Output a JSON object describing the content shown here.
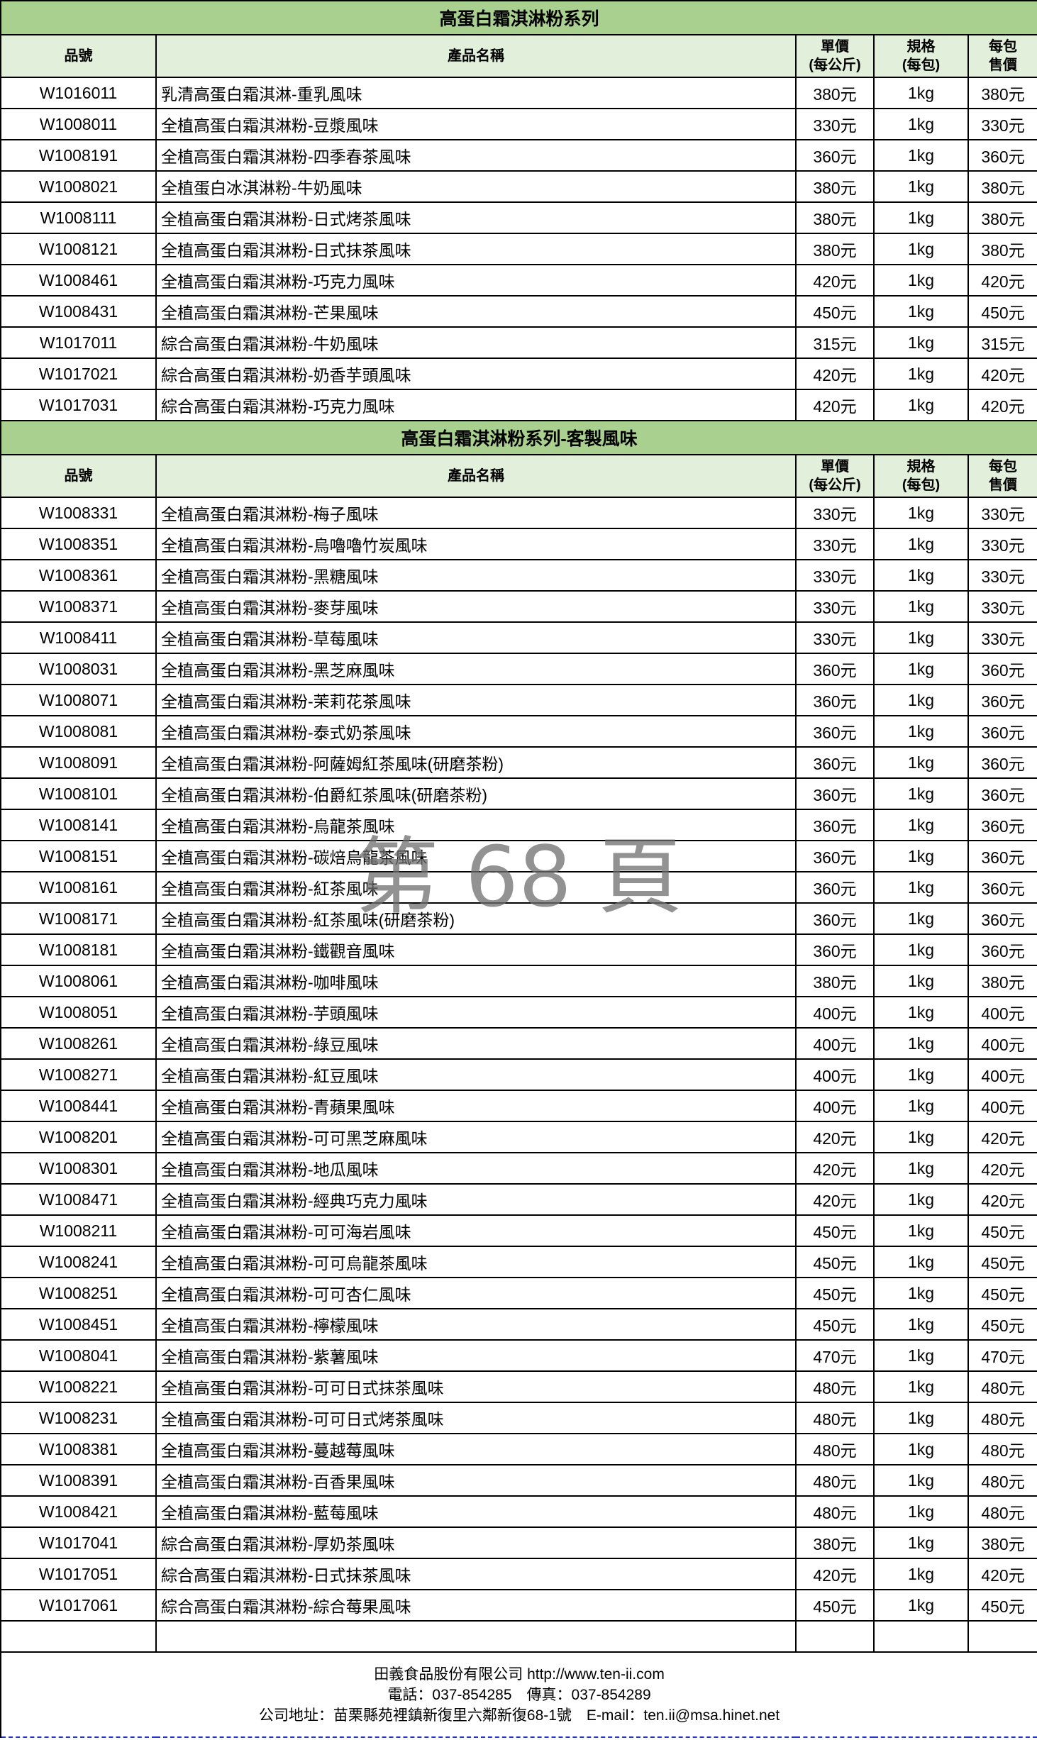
{
  "sections": [
    {
      "title": "高蛋白霜淇淋粉系列",
      "headers": {
        "code": "品號",
        "name": "產品名稱",
        "unit_price_1": "單價",
        "unit_price_2": "(每公斤)",
        "spec_1": "規格",
        "spec_2": "(每包)",
        "pack_price_1": "每包",
        "pack_price_2": "售價"
      },
      "rows": [
        [
          "W1016011",
          "乳清高蛋白霜淇淋-重乳風味",
          "380元",
          "1kg",
          "380元"
        ],
        [
          "W1008011",
          "全植高蛋白霜淇淋粉-豆漿風味",
          "330元",
          "1kg",
          "330元"
        ],
        [
          "W1008191",
          "全植高蛋白霜淇淋粉-四季春茶風味",
          "360元",
          "1kg",
          "360元"
        ],
        [
          "W1008021",
          "全植蛋白冰淇淋粉-牛奶風味",
          "380元",
          "1kg",
          "380元"
        ],
        [
          "W1008111",
          "全植高蛋白霜淇淋粉-日式烤茶風味",
          "380元",
          "1kg",
          "380元"
        ],
        [
          "W1008121",
          "全植高蛋白霜淇淋粉-日式抹茶風味",
          "380元",
          "1kg",
          "380元"
        ],
        [
          "W1008461",
          "全植高蛋白霜淇淋粉-巧克力風味",
          "420元",
          "1kg",
          "420元"
        ],
        [
          "W1008431",
          "全植高蛋白霜淇淋粉-芒果風味",
          "450元",
          "1kg",
          "450元"
        ],
        [
          "W1017011",
          "綜合高蛋白霜淇淋粉-牛奶風味",
          "315元",
          "1kg",
          "315元"
        ],
        [
          "W1017021",
          "綜合高蛋白霜淇淋粉-奶香芋頭風味",
          "420元",
          "1kg",
          "420元"
        ],
        [
          "W1017031",
          "綜合高蛋白霜淇淋粉-巧克力風味",
          "420元",
          "1kg",
          "420元"
        ]
      ]
    },
    {
      "title": "高蛋白霜淇淋粉系列-客製風味",
      "headers": {
        "code": "品號",
        "name": "產品名稱",
        "unit_price_1": "單價",
        "unit_price_2": "(每公斤)",
        "spec_1": "規格",
        "spec_2": "(每包)",
        "pack_price_1": "每包",
        "pack_price_2": "售價"
      },
      "rows": [
        [
          "W1008331",
          "全植高蛋白霜淇淋粉-梅子風味",
          "330元",
          "1kg",
          "330元"
        ],
        [
          "W1008351",
          "全植高蛋白霜淇淋粉-烏嚕嚕竹炭風味",
          "330元",
          "1kg",
          "330元"
        ],
        [
          "W1008361",
          "全植高蛋白霜淇淋粉-黑糖風味",
          "330元",
          "1kg",
          "330元"
        ],
        [
          "W1008371",
          "全植高蛋白霜淇淋粉-麥芽風味",
          "330元",
          "1kg",
          "330元"
        ],
        [
          "W1008411",
          "全植高蛋白霜淇淋粉-草莓風味",
          "330元",
          "1kg",
          "330元"
        ],
        [
          "W1008031",
          "全植高蛋白霜淇淋粉-黑芝麻風味",
          "360元",
          "1kg",
          "360元"
        ],
        [
          "W1008071",
          "全植高蛋白霜淇淋粉-茉莉花茶風味",
          "360元",
          "1kg",
          "360元"
        ],
        [
          "W1008081",
          "全植高蛋白霜淇淋粉-泰式奶茶風味",
          "360元",
          "1kg",
          "360元"
        ],
        [
          "W1008091",
          "全植高蛋白霜淇淋粉-阿薩姆紅茶風味(研磨茶粉)",
          "360元",
          "1kg",
          "360元"
        ],
        [
          "W1008101",
          "全植高蛋白霜淇淋粉-伯爵紅茶風味(研磨茶粉)",
          "360元",
          "1kg",
          "360元"
        ],
        [
          "W1008141",
          "全植高蛋白霜淇淋粉-烏龍茶風味",
          "360元",
          "1kg",
          "360元"
        ],
        [
          "W1008151",
          "全植高蛋白霜淇淋粉-碳焙烏龍茶風味",
          "360元",
          "1kg",
          "360元"
        ],
        [
          "W1008161",
          "全植高蛋白霜淇淋粉-紅茶風味",
          "360元",
          "1kg",
          "360元"
        ],
        [
          "W1008171",
          "全植高蛋白霜淇淋粉-紅茶風味(研磨茶粉)",
          "360元",
          "1kg",
          "360元"
        ],
        [
          "W1008181",
          "全植高蛋白霜淇淋粉-鐵觀音風味",
          "360元",
          "1kg",
          "360元"
        ],
        [
          "W1008061",
          "全植高蛋白霜淇淋粉-咖啡風味",
          "380元",
          "1kg",
          "380元"
        ],
        [
          "W1008051",
          "全植高蛋白霜淇淋粉-芋頭風味",
          "400元",
          "1kg",
          "400元"
        ],
        [
          "W1008261",
          "全植高蛋白霜淇淋粉-綠豆風味",
          "400元",
          "1kg",
          "400元"
        ],
        [
          "W1008271",
          "全植高蛋白霜淇淋粉-紅豆風味",
          "400元",
          "1kg",
          "400元"
        ],
        [
          "W1008441",
          "全植高蛋白霜淇淋粉-青蘋果風味",
          "400元",
          "1kg",
          "400元"
        ],
        [
          "W1008201",
          "全植高蛋白霜淇淋粉-可可黑芝麻風味",
          "420元",
          "1kg",
          "420元"
        ],
        [
          "W1008301",
          "全植高蛋白霜淇淋粉-地瓜風味",
          "420元",
          "1kg",
          "420元"
        ],
        [
          "W1008471",
          "全植高蛋白霜淇淋粉-經典巧克力風味",
          "420元",
          "1kg",
          "420元"
        ],
        [
          "W1008211",
          "全植高蛋白霜淇淋粉-可可海岩風味",
          "450元",
          "1kg",
          "450元"
        ],
        [
          "W1008241",
          "全植高蛋白霜淇淋粉-可可烏龍茶風味",
          "450元",
          "1kg",
          "450元"
        ],
        [
          "W1008251",
          "全植高蛋白霜淇淋粉-可可杏仁風味",
          "450元",
          "1kg",
          "450元"
        ],
        [
          "W1008451",
          "全植高蛋白霜淇淋粉-檸檬風味",
          "450元",
          "1kg",
          "450元"
        ],
        [
          "W1008041",
          "全植高蛋白霜淇淋粉-紫薯風味",
          "470元",
          "1kg",
          "470元"
        ],
        [
          "W1008221",
          "全植高蛋白霜淇淋粉-可可日式抹茶風味",
          "480元",
          "1kg",
          "480元"
        ],
        [
          "W1008231",
          "全植高蛋白霜淇淋粉-可可日式烤茶風味",
          "480元",
          "1kg",
          "480元"
        ],
        [
          "W1008381",
          "全植高蛋白霜淇淋粉-蔓越莓風味",
          "480元",
          "1kg",
          "480元"
        ],
        [
          "W1008391",
          "全植高蛋白霜淇淋粉-百香果風味",
          "480元",
          "1kg",
          "480元"
        ],
        [
          "W1008421",
          "全植高蛋白霜淇淋粉-藍莓風味",
          "480元",
          "1kg",
          "480元"
        ],
        [
          "W1017041",
          "綜合高蛋白霜淇淋粉-厚奶茶風味",
          "380元",
          "1kg",
          "380元"
        ],
        [
          "W1017051",
          "綜合高蛋白霜淇淋粉-日式抹茶風味",
          "420元",
          "1kg",
          "420元"
        ],
        [
          "W1017061",
          "綜合高蛋白霜淇淋粉-綜合莓果風味",
          "450元",
          "1kg",
          "450元"
        ]
      ]
    }
  ],
  "footer": {
    "line1": "田義食品股份有限公司  http://www.ten-ii.com",
    "line2": "電話：037-854285　傳真：037-854289",
    "line3": "公司地址：苗栗縣苑裡鎮新復里六鄰新復68-1號　E-mail：ten.ii@msa.hinet.net"
  },
  "watermark": "第 68 頁",
  "colors": {
    "section_title_bg": "#a9d08e",
    "header_bg": "#e2efda"
  }
}
